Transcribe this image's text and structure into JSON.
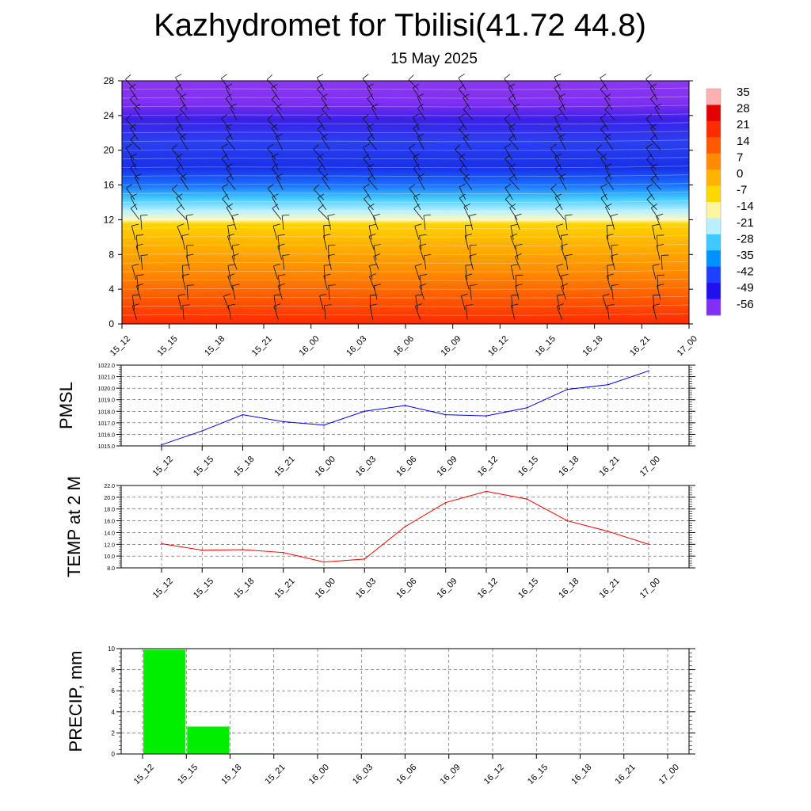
{
  "title": "Kazhydromet for Tbilisi(41.72 44.8)",
  "subtitle": "15 May 2025",
  "chart_data": [
    {
      "type": "heatmap",
      "name": "cross-section",
      "x_labels": [
        "15_12",
        "15_15",
        "15_18",
        "15_21",
        "16_00",
        "16_03",
        "16_06",
        "16_09",
        "16_12",
        "16_15",
        "16_18",
        "16_21",
        "17_00"
      ],
      "y_ticks": [
        "0",
        "4",
        "8",
        "12",
        "16",
        "20",
        "24",
        "28"
      ],
      "ylim": [
        0,
        28
      ],
      "colorbar": {
        "labels": [
          "35",
          "28",
          "21",
          "14",
          "7",
          "0",
          "-7",
          "-14",
          "-21",
          "-28",
          "-35",
          "-42",
          "-49",
          "-56"
        ],
        "colors": [
          "#ffb0b0",
          "#e40000",
          "#ff2a00",
          "#ff5a00",
          "#ff8c00",
          "#ffb400",
          "#ffd800",
          "#fff4a0",
          "#b8f0ff",
          "#40c8ff",
          "#0090ff",
          "#2040ff",
          "#2010ee",
          "#8030f0"
        ]
      },
      "contour_bands": [
        {
          "height": 0,
          "color": "#ff2a00"
        },
        {
          "height": 3,
          "color": "#ff5a00"
        },
        {
          "height": 6,
          "color": "#ff8c00"
        },
        {
          "height": 9,
          "color": "#ffb000"
        },
        {
          "height": 11.5,
          "color": "#ffd400"
        },
        {
          "height": 12,
          "color": "#fff8c0"
        },
        {
          "height": 13,
          "color": "#b8f0ff"
        },
        {
          "height": 14.5,
          "color": "#40c8ff"
        },
        {
          "height": 16,
          "color": "#1a70ff"
        },
        {
          "height": 18,
          "color": "#1830e8"
        },
        {
          "height": 21,
          "color": "#2a40f0"
        },
        {
          "height": 23.5,
          "color": "#3a20e8"
        },
        {
          "height": 25.5,
          "color": "#8030f0"
        },
        {
          "height": 28,
          "color": "#8a38f2"
        }
      ]
    },
    {
      "type": "line",
      "name": "PMSL",
      "ylabel": "PMSL",
      "categories": [
        "15_12",
        "15_15",
        "15_18",
        "15_21",
        "16_00",
        "16_03",
        "16_06",
        "16_09",
        "16_12",
        "16_15",
        "16_18",
        "16_21",
        "17_00"
      ],
      "values": [
        1015.1,
        1016.3,
        1017.7,
        1017.1,
        1016.8,
        1018.0,
        1018.5,
        1017.7,
        1017.6,
        1018.3,
        1019.9,
        1020.3,
        1021.5
      ],
      "ylim": [
        1015.0,
        1022.0
      ],
      "y_ticks": [
        "1015.0",
        "1016.0",
        "1017.0",
        "1018.0",
        "1019.0",
        "1020.0",
        "1021.0",
        "1022.0"
      ],
      "color": "#0000ee",
      "grid": true
    },
    {
      "type": "line",
      "name": "TEMP",
      "ylabel": "TEMP at 2 M",
      "categories": [
        "15_12",
        "15_15",
        "15_18",
        "15_21",
        "16_00",
        "16_03",
        "16_06",
        "16_09",
        "16_12",
        "16_15",
        "16_18",
        "16_21",
        "17_00"
      ],
      "values": [
        12.1,
        11.0,
        11.1,
        10.6,
        9.0,
        9.5,
        15.0,
        19.1,
        21.0,
        19.7,
        16.0,
        14.2,
        12.0
      ],
      "ylim": [
        8.0,
        22.0
      ],
      "y_ticks": [
        "8.0",
        "10.0",
        "12.0",
        "14.0",
        "16.0",
        "18.0",
        "20.0",
        "22.0"
      ],
      "color": "#ee0000",
      "grid": true
    },
    {
      "type": "bar",
      "name": "PRECIP",
      "ylabel": "PRECIP, mm",
      "categories": [
        "15_12",
        "15_15",
        "15_18",
        "15_21",
        "16_00",
        "16_03",
        "16_06",
        "16_09",
        "16_12",
        "16_15",
        "16_18",
        "16_21",
        "17_00"
      ],
      "values": [
        0,
        9.9,
        2.6,
        0.05,
        0,
        0,
        0,
        0,
        0,
        0,
        0,
        0,
        0
      ],
      "ylim": [
        0,
        10
      ],
      "y_ticks": [
        "0",
        "2",
        "4",
        "6",
        "8",
        "10"
      ],
      "color": "#00ee00",
      "grid": true
    }
  ]
}
